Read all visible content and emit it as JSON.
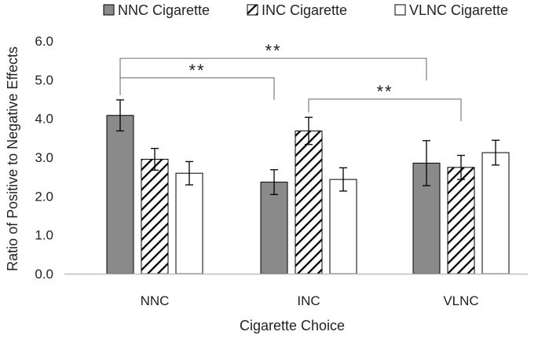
{
  "chart_data": {
    "type": "bar",
    "xlabel": "Cigarette Choice",
    "ylabel": "Ratio of Positive to Negative Effects",
    "ylim": [
      0,
      6
    ],
    "yticks": [
      "0.0",
      "1.0",
      "2.0",
      "3.0",
      "4.0",
      "5.0",
      "6.0"
    ],
    "grid": false,
    "legend_position": "top",
    "categories": [
      "NNC",
      "INC",
      "VLNC"
    ],
    "series": [
      {
        "name": "NNC Cigarette",
        "fill": "gray",
        "values": [
          4.08,
          2.36,
          2.85
        ],
        "errors": [
          0.4,
          0.32,
          0.58
        ]
      },
      {
        "name": "INC Cigarette",
        "fill": "hatched",
        "values": [
          2.95,
          3.68,
          2.74
        ],
        "errors": [
          0.28,
          0.35,
          0.31
        ]
      },
      {
        "name": "VLNC Cigarette",
        "fill": "white",
        "values": [
          2.59,
          2.43,
          3.12
        ],
        "errors": [
          0.3,
          0.3,
          0.32
        ]
      }
    ],
    "significance": [
      {
        "label": "**",
        "from": {
          "category": 0,
          "series": 0
        },
        "to": {
          "category": 2,
          "series": 0
        },
        "y": 5.55
      },
      {
        "label": "**",
        "from": {
          "category": 0,
          "series": 0
        },
        "to": {
          "category": 1,
          "series": 0
        },
        "y": 5.05
      },
      {
        "label": "**",
        "from": {
          "category": 1,
          "series": 1
        },
        "to": {
          "category": 2,
          "series": 1
        },
        "y": 4.5
      }
    ]
  },
  "colors": {
    "gray_bar": "#8a8a8a",
    "bar_edge": "#000000",
    "axis": "#bfbfbf",
    "bracket": "#808080",
    "text": "#222222"
  }
}
